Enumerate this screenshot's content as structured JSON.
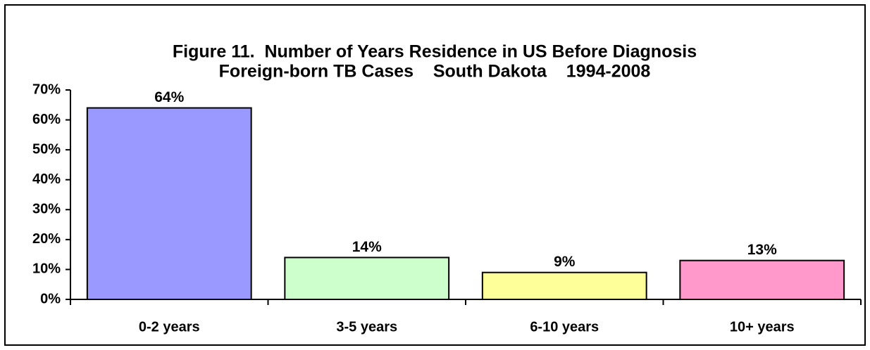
{
  "chart_data": {
    "type": "bar",
    "title": "Figure 11.  Number of Years Residence in US Before Diagnosis",
    "subtitle": "Foreign-born TB Cases    South Dakota    1994-2008",
    "categories": [
      "0-2 years",
      "3-5 years",
      "6-10 years",
      "10+ years"
    ],
    "values": [
      64,
      14,
      9,
      13
    ],
    "value_labels": [
      "64%",
      "14%",
      "9%",
      "13%"
    ],
    "colors": [
      "#9999ff",
      "#ccffcc",
      "#ffff99",
      "#ff99cc"
    ],
    "ylim": [
      0,
      70
    ],
    "yticks": [
      {
        "value": 0,
        "label": "0%"
      },
      {
        "value": 10,
        "label": "10%"
      },
      {
        "value": 20,
        "label": "20%"
      },
      {
        "value": 30,
        "label": "30%"
      },
      {
        "value": 40,
        "label": "40%"
      },
      {
        "value": 50,
        "label": "50%"
      },
      {
        "value": 60,
        "label": "60%"
      },
      {
        "value": 70,
        "label": "70%"
      }
    ],
    "grid": false
  }
}
